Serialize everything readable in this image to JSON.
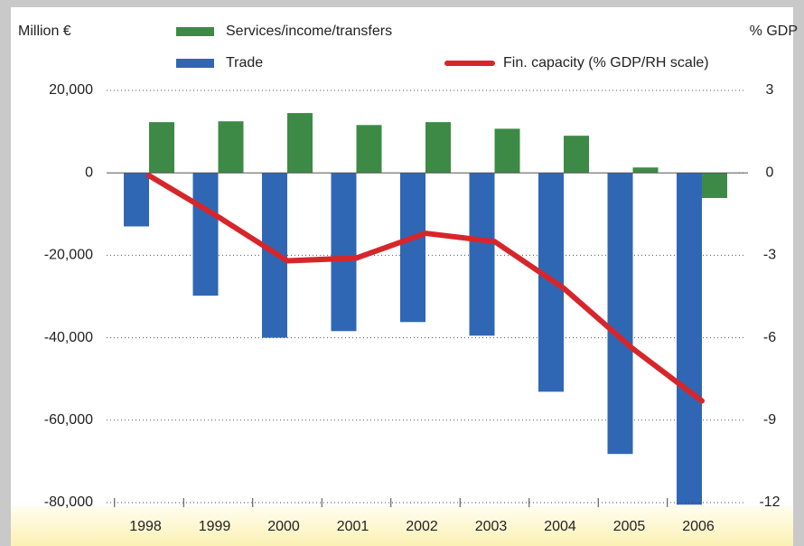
{
  "chart_data": {
    "type": "bar",
    "y_label": "Million €",
    "y2_label": "% GDP",
    "categories": [
      "1998",
      "1999",
      "2000",
      "2001",
      "2002",
      "2003",
      "2004",
      "2005",
      "2006"
    ],
    "series": [
      {
        "name": "Services/income/transfers",
        "color": "#3d8a47",
        "type": "bar",
        "values": [
          12300,
          12500,
          14500,
          11600,
          12300,
          10700,
          9000,
          1300,
          -6100
        ]
      },
      {
        "name": "Trade",
        "color": "#2f67b4",
        "type": "bar",
        "values": [
          -13000,
          -29800,
          -40000,
          -38400,
          -36200,
          -39500,
          -53100,
          -68200,
          -80500
        ]
      },
      {
        "name": "Fin. capacity (% GDP/RH scale)",
        "color": "#d7262b",
        "type": "line",
        "axis": "y2",
        "values": [
          -0.1,
          -1.6,
          -3.2,
          -3.1,
          -2.2,
          -2.5,
          -4.2,
          -6.4,
          -8.3
        ]
      }
    ],
    "ylim": [
      -80000,
      20000
    ],
    "yticks": [
      {
        "value": 20000,
        "label": "20,000"
      },
      0,
      {
        "value": -20000,
        "label": "-20,000"
      },
      {
        "value": -40000,
        "label": "-40,000"
      },
      {
        "value": -60000,
        "label": "-60,000"
      },
      {
        "value": -80000,
        "label": "-80,000"
      }
    ],
    "y2lim": [
      -12,
      3
    ],
    "y2ticks": [
      3,
      0,
      -3,
      -6,
      -9,
      -12
    ],
    "grid": true
  }
}
